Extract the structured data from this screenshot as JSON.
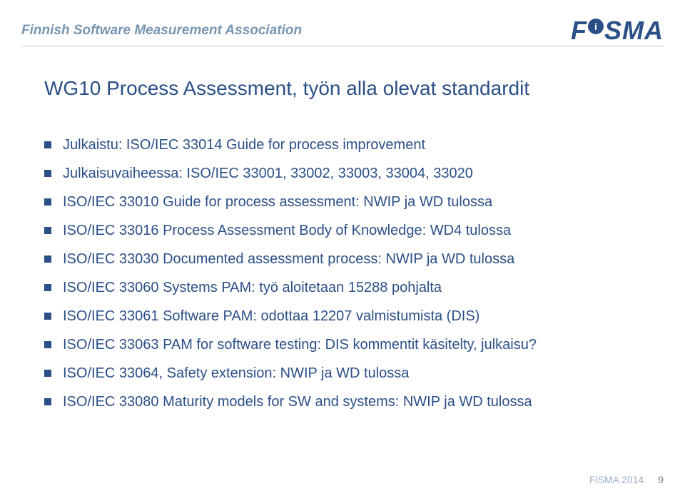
{
  "header": {
    "org_name": "Finnish Software Measurement Association",
    "logo_prefix": "F",
    "logo_i": "i",
    "logo_suffix": "SMA"
  },
  "title": "WG10 Process Assessment, työn alla olevat standardit",
  "bullets": [
    "Julkaistu: ISO/IEC 33014 Guide for process improvement",
    "Julkaisuvaiheessa: ISO/IEC 33001, 33002, 33003, 33004, 33020",
    "ISO/IEC 33010 Guide for process assessment: NWIP ja WD tulossa",
    "ISO/IEC 33016 Process Assessment Body of Knowledge: WD4 tulossa",
    "ISO/IEC 33030 Documented assessment process: NWIP ja WD tulossa",
    "ISO/IEC 33060 Systems PAM: työ aloitetaan 15288 pohjalta",
    "ISO/IEC 33061 Software PAM: odottaa 12207 valmistumista (DIS)",
    "ISO/IEC 33063 PAM for software testing: DIS kommentit käsitelty, julkaisu?",
    "ISO/IEC 33064, Safety extension: NWIP ja WD tulossa",
    "ISO/IEC 33080 Maturity models for SW and systems: NWIP ja WD tulossa"
  ],
  "footer": {
    "label": "FiSMA 2014",
    "page": "9"
  },
  "colors": {
    "primary": "#2b4f87",
    "org_text": "#7796b0",
    "divider": "#b8c5d6",
    "footer_label": "#9aaec5",
    "footer_page": "#808080",
    "background": "#ffffff"
  },
  "typography": {
    "title_fontsize": 28,
    "bullet_fontsize": 20,
    "org_fontsize": 19,
    "logo_fontsize": 36,
    "footer_fontsize": 14
  }
}
